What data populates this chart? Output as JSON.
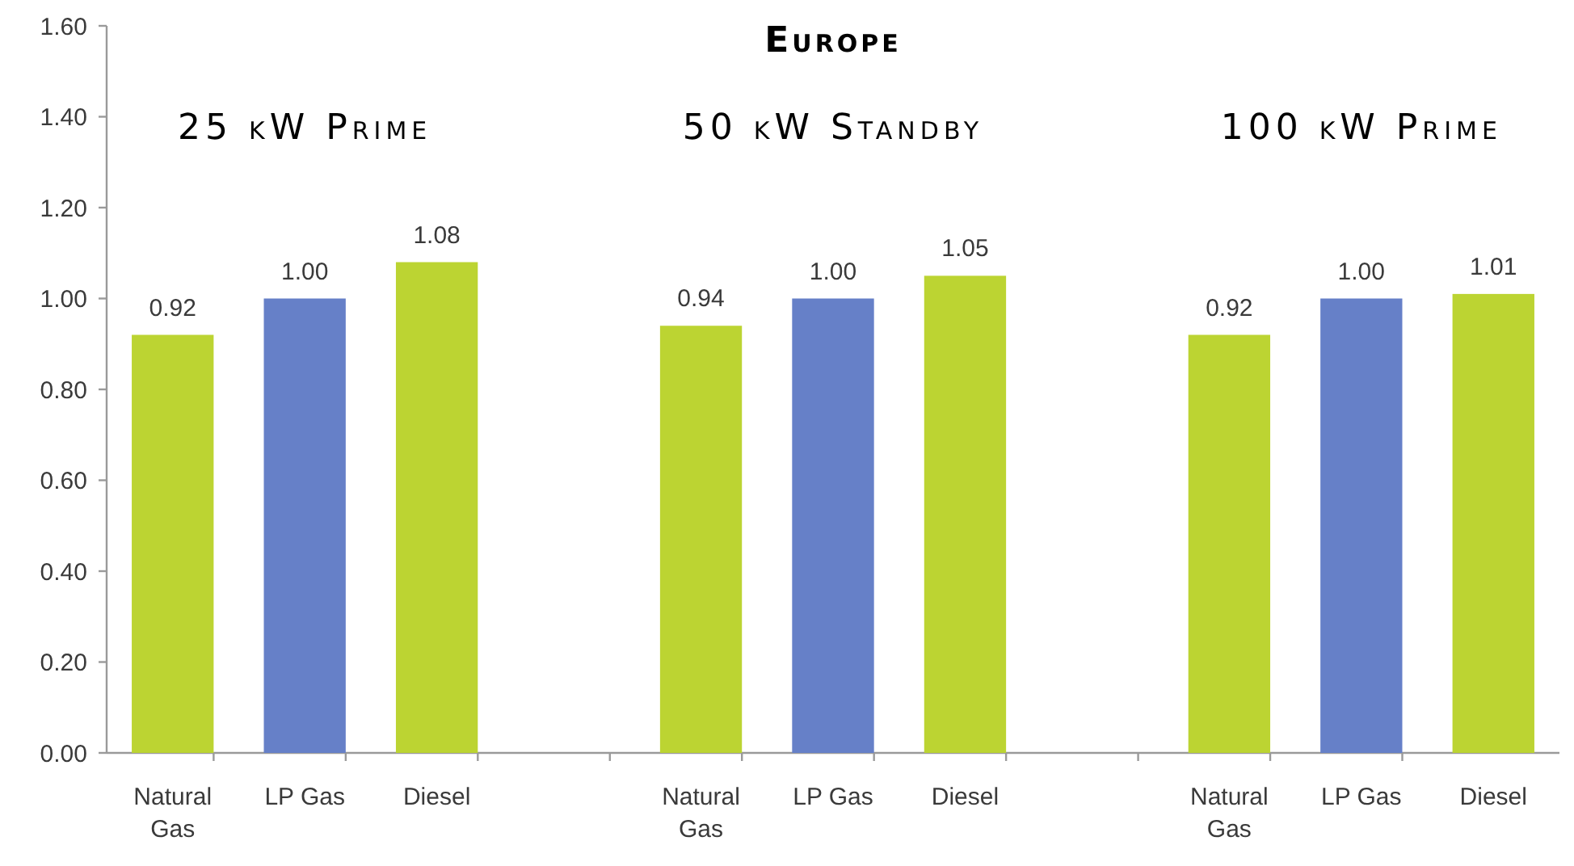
{
  "chart_data": {
    "type": "bar",
    "title": "Europe",
    "annotations": [
      "25 kW Prime",
      "50 kW Standby",
      "100 kW Prime"
    ],
    "categories": [
      "Natural Gas",
      "LP Gas",
      "Diesel",
      null,
      "Natural Gas",
      "LP Gas",
      "Diesel",
      null,
      "Natural Gas",
      "LP Gas",
      "Diesel"
    ],
    "values": [
      0.92,
      1.0,
      1.08,
      null,
      0.94,
      1.0,
      1.05,
      null,
      0.92,
      1.0,
      1.01
    ],
    "colors": [
      "#bcd432",
      "#6680c8",
      "#bcd432",
      null,
      "#bcd432",
      "#6680c8",
      "#bcd432",
      null,
      "#bcd432",
      "#6680c8",
      "#bcd432"
    ],
    "value_labels": [
      "0.92",
      "1.00",
      "1.08",
      null,
      "0.94",
      "1.00",
      "1.05",
      null,
      "0.92",
      "1.00",
      "1.01"
    ],
    "ylim": [
      0,
      1.6
    ],
    "yticks": [
      {
        "value": 0,
        "label": "0.00"
      },
      {
        "value": 0.2,
        "label": "0.20"
      },
      {
        "value": 0.4,
        "label": "0.40"
      },
      {
        "value": 0.6,
        "label": "0.60"
      },
      {
        "value": 0.8,
        "label": "0.80"
      },
      {
        "value": 1,
        "label": "1.00"
      },
      {
        "value": 1.2,
        "label": "1.20"
      },
      {
        "value": 1.4,
        "label": "1.40"
      },
      {
        "value": 1.6,
        "label": "1.60"
      }
    ]
  }
}
